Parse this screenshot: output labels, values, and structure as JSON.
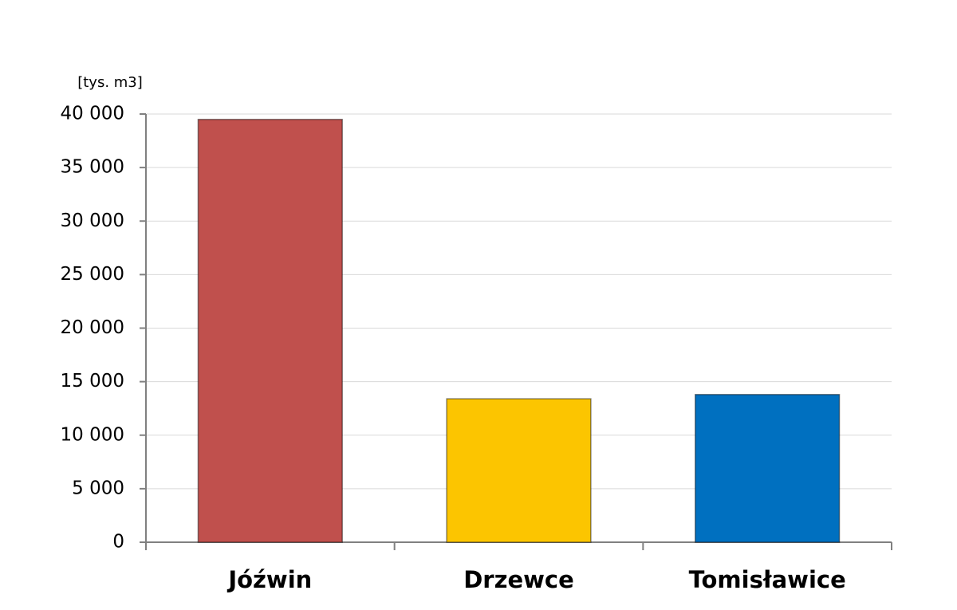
{
  "chart_data": {
    "type": "bar",
    "y_label": "[tys. m3]",
    "categories": [
      "Jóźwin",
      "Drzewce",
      "Tomisławice"
    ],
    "values": [
      39500,
      13400,
      13800
    ],
    "colors": [
      "#c0504d",
      "#fcc500",
      "#0070c0"
    ],
    "ylim": [
      0,
      40000
    ],
    "yticks": [
      0,
      {
        "value": 5000,
        "label": "5 000"
      },
      {
        "value": 10000,
        "label": "10 000"
      },
      {
        "value": 15000,
        "label": "15 000"
      },
      {
        "value": 20000,
        "label": "20 000"
      },
      {
        "value": 25000,
        "label": "25 000"
      },
      {
        "value": 30000,
        "label": "30 000"
      },
      {
        "value": 35000,
        "label": "35 000"
      },
      {
        "value": 40000,
        "label": "40 000"
      }
    ],
    "grid": true
  }
}
